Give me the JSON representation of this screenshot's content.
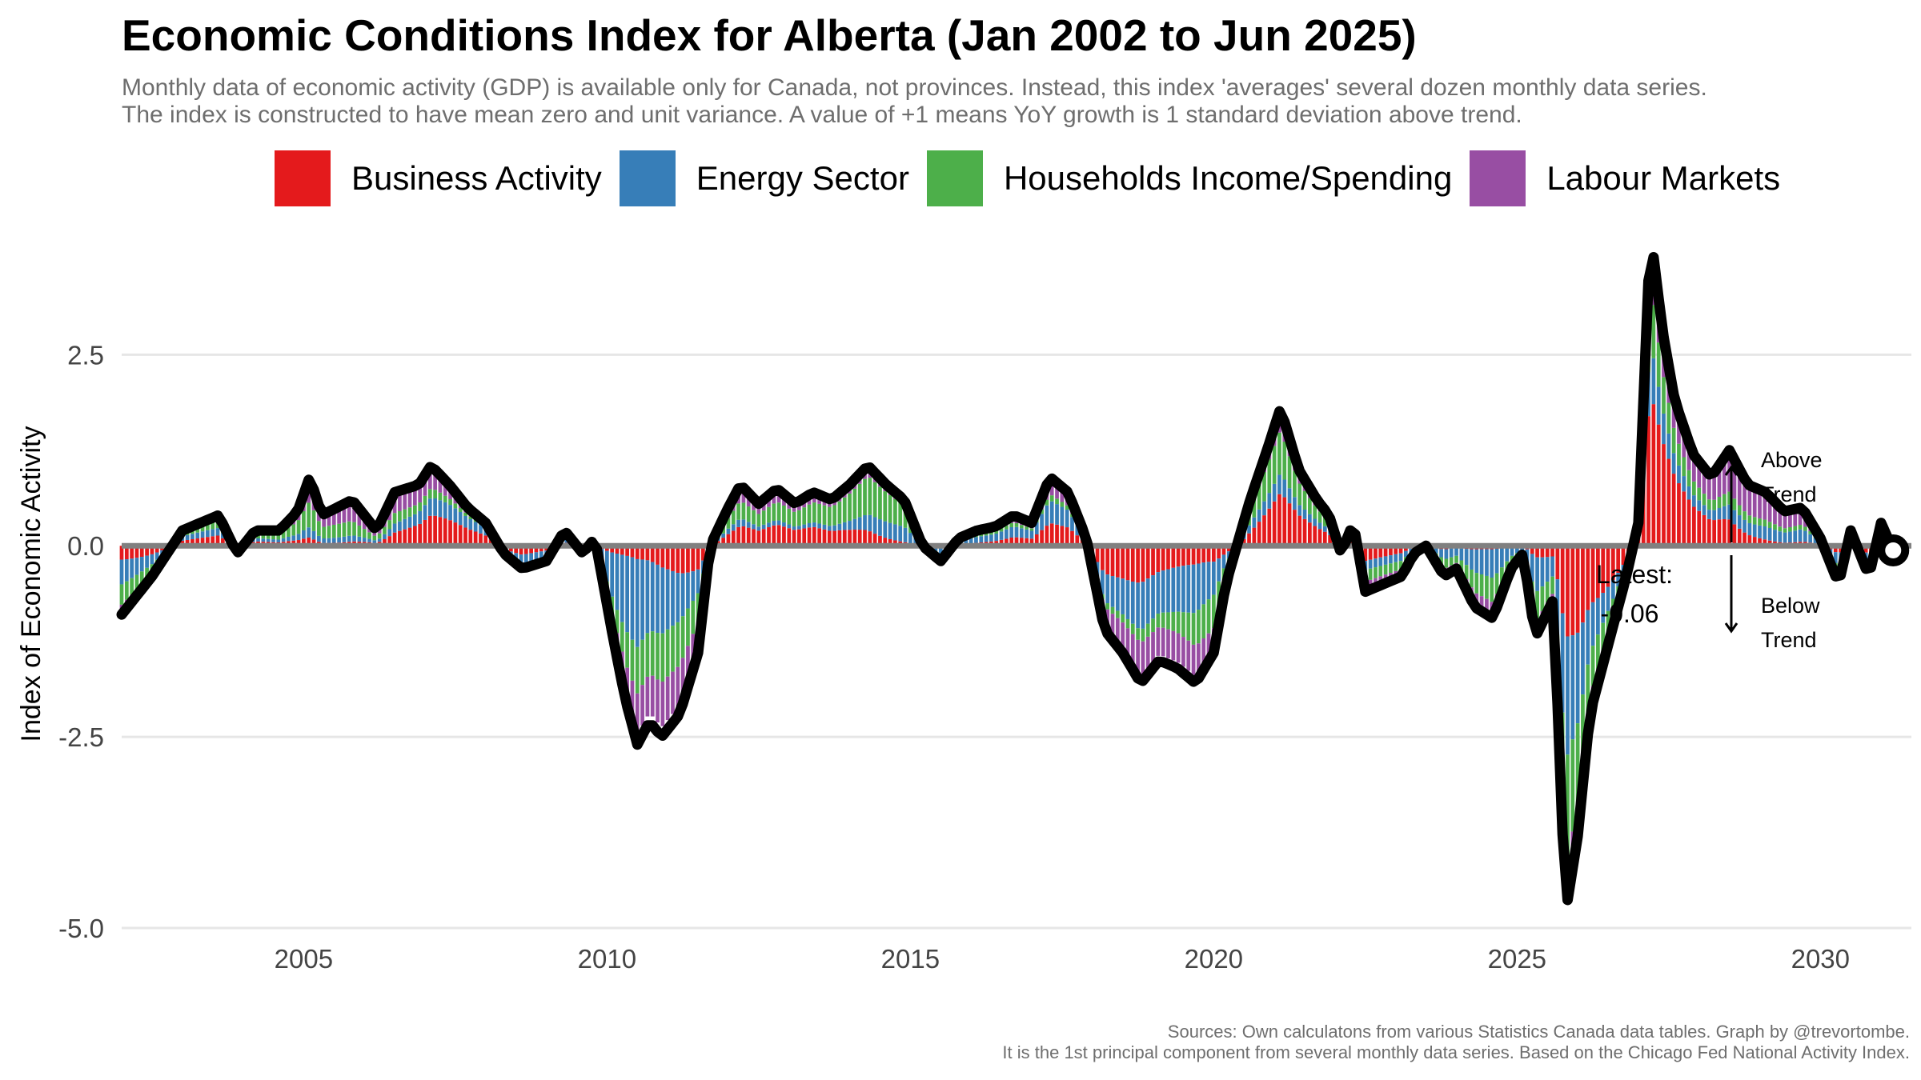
{
  "title": "Economic Conditions Index for Alberta (Jan 2002 to Jun 2025)",
  "subtitle_lines": [
    "Monthly data of economic activity (GDP) is available only for Canada, not provinces. Instead, this index 'averages' several dozen monthly data series.",
    "The index is constructed to have mean zero and unit variance. A value of +1 means YoY growth is 1 standard deviation above trend."
  ],
  "legend": [
    {
      "label": "Business Activity",
      "color": "#e41a1c"
    },
    {
      "label": "Energy Sector",
      "color": "#377eb8"
    },
    {
      "label": "Households Income/Spending",
      "color": "#4daf4a"
    },
    {
      "label": "Labour Markets",
      "color": "#984ea3"
    }
  ],
  "annotations": {
    "latest_label": "Latest:",
    "latest_value_text": "-0.06",
    "above_line1": "Above",
    "above_line2": "Trend",
    "below_line1": "Below",
    "below_line2": "Trend"
  },
  "caption_lines": [
    "Sources: Own calculatons from various Statistics Canada data tables. Graph by @trevortombe.",
    "It is the 1st principal component from several monthly data series. Based on the Chicago Fed National Activity Index."
  ],
  "chart_data": {
    "type": "bar",
    "stacked": true,
    "overlay_line": "Index of Economic Activity (black line)",
    "ylabel": "Index of Economic Activity",
    "xlabel": "",
    "xlim": [
      2002.0,
      2031.5
    ],
    "ylim": [
      -5.0,
      4.0
    ],
    "x_ticks": [
      2005,
      2010,
      2015,
      2020,
      2025,
      2030
    ],
    "y_ticks": [
      -5.0,
      -2.5,
      0.0,
      2.5
    ],
    "y_tick_labels": [
      "-5.0",
      "-2.5",
      "0.0",
      "2.5"
    ],
    "grid": "horizontal",
    "legend_position": "top",
    "index_anchors": [
      [
        2002.0,
        -0.9
      ],
      [
        2002.5,
        -0.4
      ],
      [
        2003.0,
        0.2
      ],
      [
        2003.3,
        0.3
      ],
      [
        2003.6,
        0.4
      ],
      [
        2003.9,
        -0.1
      ],
      [
        2004.2,
        0.2
      ],
      [
        2004.6,
        0.2
      ],
      [
        2004.9,
        0.45
      ],
      [
        2005.1,
        0.9
      ],
      [
        2005.3,
        0.4
      ],
      [
        2005.8,
        0.6
      ],
      [
        2006.2,
        0.2
      ],
      [
        2006.5,
        0.7
      ],
      [
        2006.9,
        0.8
      ],
      [
        2007.1,
        1.05
      ],
      [
        2007.4,
        0.8
      ],
      [
        2007.7,
        0.5
      ],
      [
        2008.0,
        0.3
      ],
      [
        2008.3,
        -0.1
      ],
      [
        2008.6,
        -0.3
      ],
      [
        2009.0,
        -0.2
      ],
      [
        2009.3,
        0.2
      ],
      [
        2009.6,
        -0.1
      ],
      [
        2009.8,
        0.1
      ],
      [
        2010.1,
        -1.2
      ],
      [
        2010.3,
        -2.0
      ],
      [
        2010.5,
        -2.6
      ],
      [
        2010.7,
        -2.3
      ],
      [
        2010.9,
        -2.5
      ],
      [
        2011.2,
        -2.2
      ],
      [
        2011.5,
        -1.4
      ],
      [
        2011.7,
        0.0
      ],
      [
        2012.0,
        0.5
      ],
      [
        2012.2,
        0.8
      ],
      [
        2012.5,
        0.55
      ],
      [
        2012.8,
        0.75
      ],
      [
        2013.1,
        0.55
      ],
      [
        2013.4,
        0.7
      ],
      [
        2013.7,
        0.6
      ],
      [
        2014.0,
        0.8
      ],
      [
        2014.3,
        1.05
      ],
      [
        2014.6,
        0.8
      ],
      [
        2014.9,
        0.6
      ],
      [
        2015.2,
        0.0
      ],
      [
        2015.5,
        -0.2
      ],
      [
        2015.8,
        0.1
      ],
      [
        2016.1,
        0.2
      ],
      [
        2016.4,
        0.25
      ],
      [
        2016.7,
        0.4
      ],
      [
        2017.0,
        0.3
      ],
      [
        2017.3,
        0.9
      ],
      [
        2017.6,
        0.7
      ],
      [
        2017.9,
        0.1
      ],
      [
        2018.2,
        -1.1
      ],
      [
        2018.5,
        -1.4
      ],
      [
        2018.8,
        -1.8
      ],
      [
        2019.1,
        -1.5
      ],
      [
        2019.4,
        -1.6
      ],
      [
        2019.7,
        -1.8
      ],
      [
        2020.0,
        -1.4
      ],
      [
        2020.2,
        -0.5
      ],
      [
        2020.6,
        0.6
      ],
      [
        2020.9,
        1.3
      ],
      [
        2021.1,
        1.8
      ],
      [
        2021.4,
        1.0
      ],
      [
        2021.7,
        0.6
      ],
      [
        2021.9,
        0.4
      ],
      [
        2022.1,
        -0.1
      ],
      [
        2022.3,
        0.3
      ],
      [
        2022.5,
        -0.6
      ],
      [
        2022.8,
        -0.5
      ],
      [
        2023.1,
        -0.4
      ],
      [
        2023.3,
        -0.1
      ],
      [
        2023.5,
        0.0
      ],
      [
        2023.8,
        -0.4
      ],
      [
        2024.0,
        -0.3
      ],
      [
        2024.3,
        -0.8
      ],
      [
        2024.6,
        -0.95
      ],
      [
        2024.9,
        -0.3
      ],
      [
        2025.1,
        -0.1
      ],
      [
        2025.3,
        -1.2
      ],
      [
        2025.6,
        -0.7
      ],
      [
        2025.8,
        -4.8
      ],
      [
        2026.0,
        -3.8
      ],
      [
        2026.2,
        -2.2
      ],
      [
        2026.5,
        -1.3
      ],
      [
        2026.8,
        -0.4
      ],
      [
        2027.0,
        0.3
      ],
      [
        2027.2,
        4.1
      ],
      [
        2027.4,
        2.8
      ],
      [
        2027.6,
        1.9
      ],
      [
        2027.9,
        1.2
      ],
      [
        2028.2,
        0.9
      ],
      [
        2028.5,
        1.25
      ],
      [
        2028.8,
        0.8
      ],
      [
        2029.1,
        0.7
      ],
      [
        2029.4,
        0.45
      ],
      [
        2029.7,
        0.5
      ],
      [
        2030.0,
        0.1
      ],
      [
        2030.3,
        -0.5
      ],
      [
        2030.5,
        0.2
      ],
      [
        2030.8,
        -0.4
      ],
      [
        2031.0,
        0.3
      ],
      [
        2031.2,
        -0.06
      ]
    ],
    "latest_value": -0.06
  }
}
